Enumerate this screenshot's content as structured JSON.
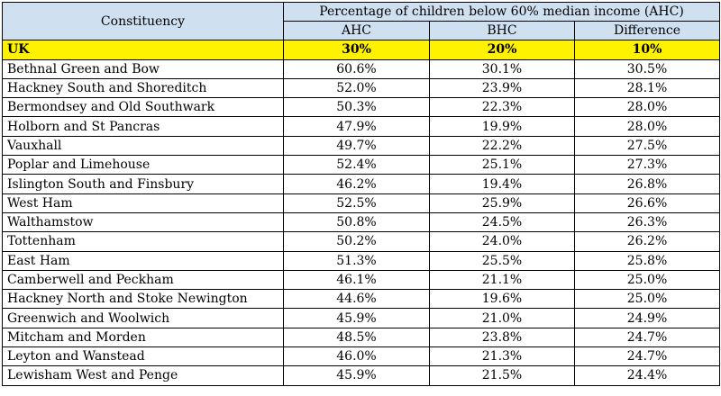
{
  "chart_data": {
    "type": "table",
    "header": {
      "constituency": "Constituency",
      "group": "Percentage of children below 60% median income (AHC)",
      "columns": [
        "AHC",
        "BHC",
        "Difference"
      ]
    },
    "highlight_row": {
      "name": "UK",
      "values": [
        "30%",
        "20%",
        "10%"
      ]
    },
    "rows": [
      {
        "name": "Bethnal Green and Bow",
        "values": [
          "60.6%",
          "30.1%",
          "30.5%"
        ]
      },
      {
        "name": "Hackney South and Shoreditch",
        "values": [
          "52.0%",
          "23.9%",
          "28.1%"
        ]
      },
      {
        "name": "Bermondsey and Old Southwark",
        "values": [
          "50.3%",
          "22.3%",
          "28.0%"
        ]
      },
      {
        "name": "Holborn and St Pancras",
        "values": [
          "47.9%",
          "19.9%",
          "28.0%"
        ]
      },
      {
        "name": "Vauxhall",
        "values": [
          "49.7%",
          "22.2%",
          "27.5%"
        ]
      },
      {
        "name": "Poplar and Limehouse",
        "values": [
          "52.4%",
          "25.1%",
          "27.3%"
        ]
      },
      {
        "name": "Islington South and Finsbury",
        "values": [
          "46.2%",
          "19.4%",
          "26.8%"
        ]
      },
      {
        "name": "West Ham",
        "values": [
          "52.5%",
          "25.9%",
          "26.6%"
        ]
      },
      {
        "name": "Walthamstow",
        "values": [
          "50.8%",
          "24.5%",
          "26.3%"
        ]
      },
      {
        "name": "Tottenham",
        "values": [
          "50.2%",
          "24.0%",
          "26.2%"
        ]
      },
      {
        "name": "East Ham",
        "values": [
          "51.3%",
          "25.5%",
          "25.8%"
        ]
      },
      {
        "name": "Camberwell and Peckham",
        "values": [
          "46.1%",
          "21.1%",
          "25.0%"
        ]
      },
      {
        "name": "Hackney North and Stoke Newington",
        "values": [
          "44.6%",
          "19.6%",
          "25.0%"
        ]
      },
      {
        "name": "Greenwich and Woolwich",
        "values": [
          "45.9%",
          "21.0%",
          "24.9%"
        ]
      },
      {
        "name": "Mitcham and Morden",
        "values": [
          "48.5%",
          "23.8%",
          "24.7%"
        ]
      },
      {
        "name": "Leyton and Wanstead",
        "values": [
          "46.0%",
          "21.3%",
          "24.7%"
        ]
      },
      {
        "name": "Lewisham West and Penge",
        "values": [
          "45.9%",
          "21.5%",
          "24.4%"
        ]
      }
    ],
    "colors": {
      "header_bg": "#cfe0f1",
      "highlight_bg": "#fff200",
      "border": "#000000"
    }
  }
}
